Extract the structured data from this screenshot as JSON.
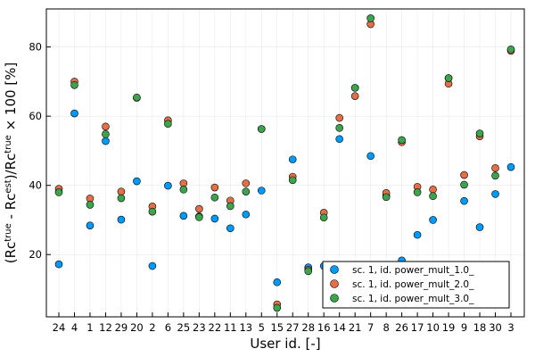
{
  "chart_data": {
    "type": "scatter",
    "xlabel": "User id. [-]",
    "ylabel_parts": [
      "(Rc",
      "true",
      " - Rc",
      "est",
      ")/Rc",
      "true",
      " × 100 [%]"
    ],
    "categories": [
      "24",
      "4",
      "1",
      "12",
      "29",
      "20",
      "2",
      "6",
      "25",
      "23",
      "22",
      "11",
      "13",
      "5",
      "15",
      "27",
      "28",
      "16",
      "14",
      "21",
      "7",
      "8",
      "26",
      "17",
      "10",
      "19",
      "9",
      "18",
      "30",
      "3"
    ],
    "ylim": [
      2,
      91
    ],
    "yticks": [
      20,
      40,
      60,
      80
    ],
    "grid": true,
    "legend_position": "bottom-right",
    "colors": [
      "#009af9",
      "#e26f46",
      "#3da44d"
    ],
    "series": [
      {
        "name": "sc. 1, id. power_mult_1.0_",
        "values": [
          17.2,
          60.8,
          28.4,
          52.8,
          30.1,
          41.2,
          16.7,
          39.9,
          31.2,
          31.0,
          30.4,
          27.6,
          31.6,
          38.5,
          12.0,
          47.5,
          16.3,
          16.7,
          53.4,
          68.2,
          48.5,
          37.0,
          18.3,
          25.7,
          30.0,
          71.0,
          35.5,
          27.9,
          37.5,
          45.3
        ]
      },
      {
        "name": "sc. 1, id. power_mult_2.0_",
        "values": [
          39.0,
          70.0,
          36.2,
          57.0,
          38.2,
          65.3,
          33.9,
          58.8,
          40.6,
          33.2,
          39.4,
          35.6,
          40.6,
          56.3,
          5.6,
          42.5,
          15.6,
          32.1,
          59.5,
          65.8,
          86.6,
          37.8,
          52.5,
          39.6,
          38.8,
          69.4,
          43.0,
          54.2,
          45.0,
          78.9
        ]
      },
      {
        "name": "sc. 1, id. power_mult_3.0_",
        "values": [
          38.0,
          69.0,
          34.4,
          54.8,
          36.3,
          65.4,
          32.4,
          57.8,
          38.8,
          30.8,
          36.5,
          34.0,
          38.2,
          56.3,
          4.6,
          41.5,
          15.2,
          30.7,
          56.6,
          68.2,
          88.3,
          36.6,
          53.1,
          38.0,
          36.9,
          71.0,
          40.2,
          55.0,
          42.8,
          79.3
        ]
      }
    ]
  }
}
